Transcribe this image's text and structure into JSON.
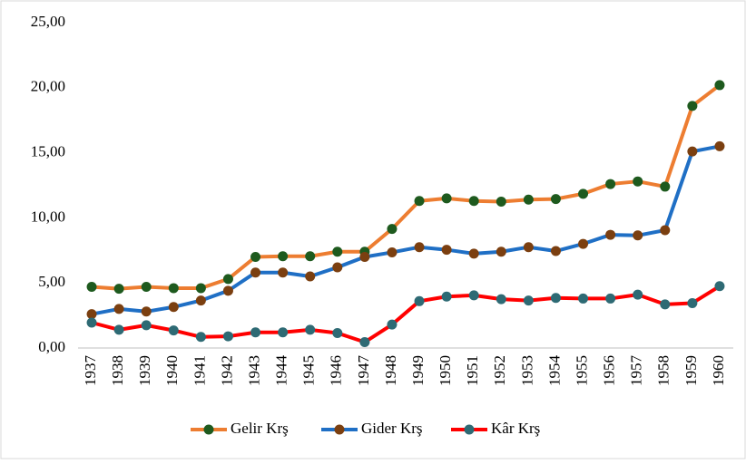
{
  "chart_data": {
    "type": "line",
    "categories": [
      "1937",
      "1938",
      "1939",
      "1940",
      "1941",
      "1942",
      "1943",
      "1944",
      "1945",
      "1946",
      "1947",
      "1948",
      "1949",
      "1950",
      "1951",
      "1952",
      "1953",
      "1954",
      "1955",
      "1956",
      "1957",
      "1958",
      "1959",
      "1960"
    ],
    "series": [
      {
        "name": "Gelir Krş",
        "color": "#ed7d31",
        "marker_color": "#1e5a1e",
        "values": [
          4.7,
          4.55,
          4.7,
          4.6,
          4.6,
          5.3,
          7.0,
          7.05,
          7.05,
          7.4,
          7.4,
          9.15,
          11.3,
          11.5,
          11.3,
          11.25,
          11.4,
          11.45,
          11.85,
          12.6,
          12.8,
          12.4,
          18.6,
          20.2
        ]
      },
      {
        "name": "Gider Krş",
        "color": "#1f6fc5",
        "marker_color": "#7b3f10",
        "values": [
          2.6,
          3.0,
          2.8,
          3.15,
          3.65,
          4.4,
          5.8,
          5.8,
          5.5,
          6.2,
          7.0,
          7.35,
          7.75,
          7.55,
          7.25,
          7.4,
          7.75,
          7.45,
          8.0,
          8.7,
          8.65,
          9.05,
          15.1,
          15.5
        ]
      },
      {
        "name": "Kâr Krş",
        "color": "#ff0000",
        "marker_color": "#2e6a74",
        "values": [
          1.95,
          1.4,
          1.75,
          1.35,
          0.85,
          0.9,
          1.2,
          1.2,
          1.4,
          1.15,
          0.45,
          1.8,
          3.6,
          3.95,
          4.05,
          3.75,
          3.65,
          3.85,
          3.8,
          3.8,
          4.1,
          3.35,
          3.45,
          4.75
        ]
      }
    ],
    "ylim": [
      0,
      25
    ],
    "yticks": [
      {
        "value": 0,
        "label": "0,00"
      },
      {
        "value": 5,
        "label": "5,00"
      },
      {
        "value": 10,
        "label": "10,00"
      },
      {
        "value": 15,
        "label": "15,00"
      },
      {
        "value": 20,
        "label": "20,00"
      },
      {
        "value": 25,
        "label": "25,00"
      }
    ],
    "grid": false,
    "legend": "bottom"
  }
}
